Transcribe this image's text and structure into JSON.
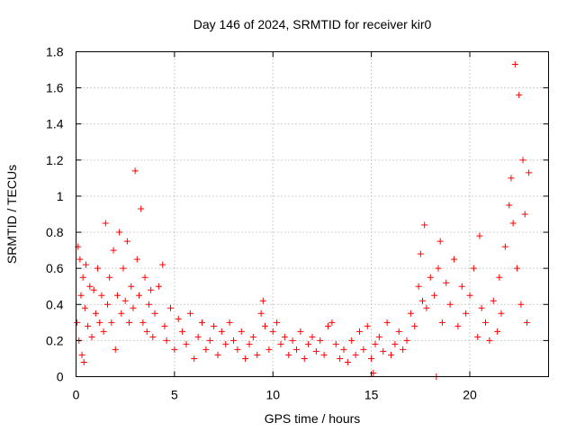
{
  "chart_data": {
    "type": "scatter",
    "title": "Day 146 of 2024, SRMTID for receiver kir0",
    "xlabel": "GPS time / hours",
    "ylabel": "SRMTID / TECUs",
    "xlim": [
      0,
      24
    ],
    "ylim": [
      0,
      1.8
    ],
    "x_ticks": [
      0,
      5,
      10,
      15,
      20
    ],
    "x_tick_labels": [
      "0",
      "5",
      "10",
      "15",
      "20"
    ],
    "y_ticks": [
      0,
      0.2,
      0.4,
      0.6,
      0.8,
      1.0,
      1.2,
      1.4,
      1.6,
      1.8
    ],
    "y_tick_labels": [
      "0",
      "0.2",
      "0.4",
      "0.6",
      "0.8",
      "1",
      "1.2",
      "1.4",
      "1.6",
      "1.8"
    ],
    "grid": true,
    "marker": "+",
    "color": "#ff0000",
    "series": [
      {
        "name": "SRMTID",
        "points": [
          [
            0.05,
            0.3
          ],
          [
            0.1,
            0.72
          ],
          [
            0.15,
            0.2
          ],
          [
            0.2,
            0.65
          ],
          [
            0.25,
            0.45
          ],
          [
            0.3,
            0.12
          ],
          [
            0.35,
            0.55
          ],
          [
            0.4,
            0.08
          ],
          [
            0.45,
            0.38
          ],
          [
            0.5,
            0.62
          ],
          [
            0.6,
            0.28
          ],
          [
            0.7,
            0.5
          ],
          [
            0.8,
            0.22
          ],
          [
            0.9,
            0.48
          ],
          [
            1.0,
            0.35
          ],
          [
            1.1,
            0.6
          ],
          [
            1.2,
            0.3
          ],
          [
            1.3,
            0.45
          ],
          [
            1.4,
            0.25
          ],
          [
            1.5,
            0.85
          ],
          [
            1.6,
            0.4
          ],
          [
            1.7,
            0.55
          ],
          [
            1.8,
            0.3
          ],
          [
            1.9,
            0.7
          ],
          [
            2.0,
            0.15
          ],
          [
            2.1,
            0.45
          ],
          [
            2.2,
            0.8
          ],
          [
            2.3,
            0.35
          ],
          [
            2.4,
            0.6
          ],
          [
            2.5,
            0.42
          ],
          [
            2.6,
            0.75
          ],
          [
            2.7,
            0.3
          ],
          [
            2.8,
            0.5
          ],
          [
            2.9,
            0.38
          ],
          [
            3.0,
            1.14
          ],
          [
            3.1,
            0.65
          ],
          [
            3.2,
            0.45
          ],
          [
            3.3,
            0.93
          ],
          [
            3.4,
            0.3
          ],
          [
            3.5,
            0.55
          ],
          [
            3.6,
            0.25
          ],
          [
            3.7,
            0.4
          ],
          [
            3.8,
            0.48
          ],
          [
            3.9,
            0.22
          ],
          [
            4.0,
            0.35
          ],
          [
            4.2,
            0.5
          ],
          [
            4.4,
            0.62
          ],
          [
            4.5,
            0.28
          ],
          [
            4.6,
            0.2
          ],
          [
            4.8,
            0.38
          ],
          [
            5.0,
            0.15
          ],
          [
            5.2,
            0.32
          ],
          [
            5.4,
            0.25
          ],
          [
            5.6,
            0.18
          ],
          [
            5.8,
            0.35
          ],
          [
            6.0,
            0.1
          ],
          [
            6.2,
            0.22
          ],
          [
            6.4,
            0.3
          ],
          [
            6.6,
            0.15
          ],
          [
            6.8,
            0.2
          ],
          [
            7.0,
            0.28
          ],
          [
            7.2,
            0.12
          ],
          [
            7.4,
            0.25
          ],
          [
            7.6,
            0.18
          ],
          [
            7.8,
            0.3
          ],
          [
            8.0,
            0.2
          ],
          [
            8.2,
            0.15
          ],
          [
            8.4,
            0.25
          ],
          [
            8.6,
            0.1
          ],
          [
            8.8,
            0.18
          ],
          [
            9.0,
            0.22
          ],
          [
            9.2,
            0.12
          ],
          [
            9.4,
            0.35
          ],
          [
            9.5,
            0.42
          ],
          [
            9.6,
            0.28
          ],
          [
            9.8,
            0.15
          ],
          [
            10.0,
            0.25
          ],
          [
            10.2,
            0.3
          ],
          [
            10.4,
            0.18
          ],
          [
            10.6,
            0.22
          ],
          [
            10.8,
            0.12
          ],
          [
            11.0,
            0.2
          ],
          [
            11.2,
            0.15
          ],
          [
            11.4,
            0.25
          ],
          [
            11.6,
            0.1
          ],
          [
            11.8,
            0.18
          ],
          [
            12.0,
            0.22
          ],
          [
            12.2,
            0.14
          ],
          [
            12.4,
            0.2
          ],
          [
            12.6,
            0.12
          ],
          [
            12.8,
            0.28
          ],
          [
            13.0,
            0.3
          ],
          [
            13.2,
            0.18
          ],
          [
            13.4,
            0.1
          ],
          [
            13.6,
            0.15
          ],
          [
            13.8,
            0.08
          ],
          [
            14.0,
            0.2
          ],
          [
            14.2,
            0.12
          ],
          [
            14.4,
            0.25
          ],
          [
            14.6,
            0.15
          ],
          [
            14.8,
            0.28
          ],
          [
            15.0,
            0.1
          ],
          [
            15.1,
            0.02
          ],
          [
            15.2,
            0.18
          ],
          [
            15.4,
            0.22
          ],
          [
            15.6,
            0.14
          ],
          [
            15.8,
            0.3
          ],
          [
            16.0,
            0.12
          ],
          [
            16.2,
            0.18
          ],
          [
            16.4,
            0.25
          ],
          [
            16.6,
            0.15
          ],
          [
            16.8,
            0.2
          ],
          [
            17.0,
            0.35
          ],
          [
            17.2,
            0.28
          ],
          [
            17.4,
            0.5
          ],
          [
            17.5,
            0.68
          ],
          [
            17.6,
            0.42
          ],
          [
            17.7,
            0.84
          ],
          [
            17.8,
            0.38
          ],
          [
            18.0,
            0.55
          ],
          [
            18.2,
            0.45
          ],
          [
            18.3,
            0.0
          ],
          [
            18.4,
            0.6
          ],
          [
            18.5,
            0.75
          ],
          [
            18.6,
            0.3
          ],
          [
            18.8,
            0.52
          ],
          [
            19.0,
            0.4
          ],
          [
            19.2,
            0.65
          ],
          [
            19.4,
            0.28
          ],
          [
            19.6,
            0.5
          ],
          [
            19.8,
            0.35
          ],
          [
            20.0,
            0.45
          ],
          [
            20.2,
            0.6
          ],
          [
            20.4,
            0.22
          ],
          [
            20.5,
            0.78
          ],
          [
            20.6,
            0.38
          ],
          [
            20.8,
            0.3
          ],
          [
            21.0,
            0.2
          ],
          [
            21.2,
            0.42
          ],
          [
            21.4,
            0.25
          ],
          [
            21.5,
            0.55
          ],
          [
            21.6,
            0.35
          ],
          [
            21.8,
            0.72
          ],
          [
            22.0,
            0.95
          ],
          [
            22.1,
            1.1
          ],
          [
            22.2,
            0.85
          ],
          [
            22.3,
            1.73
          ],
          [
            22.4,
            0.6
          ],
          [
            22.5,
            1.56
          ],
          [
            22.6,
            0.4
          ],
          [
            22.7,
            1.2
          ],
          [
            22.8,
            0.9
          ],
          [
            22.9,
            0.3
          ],
          [
            23.0,
            1.13
          ]
        ]
      }
    ]
  }
}
